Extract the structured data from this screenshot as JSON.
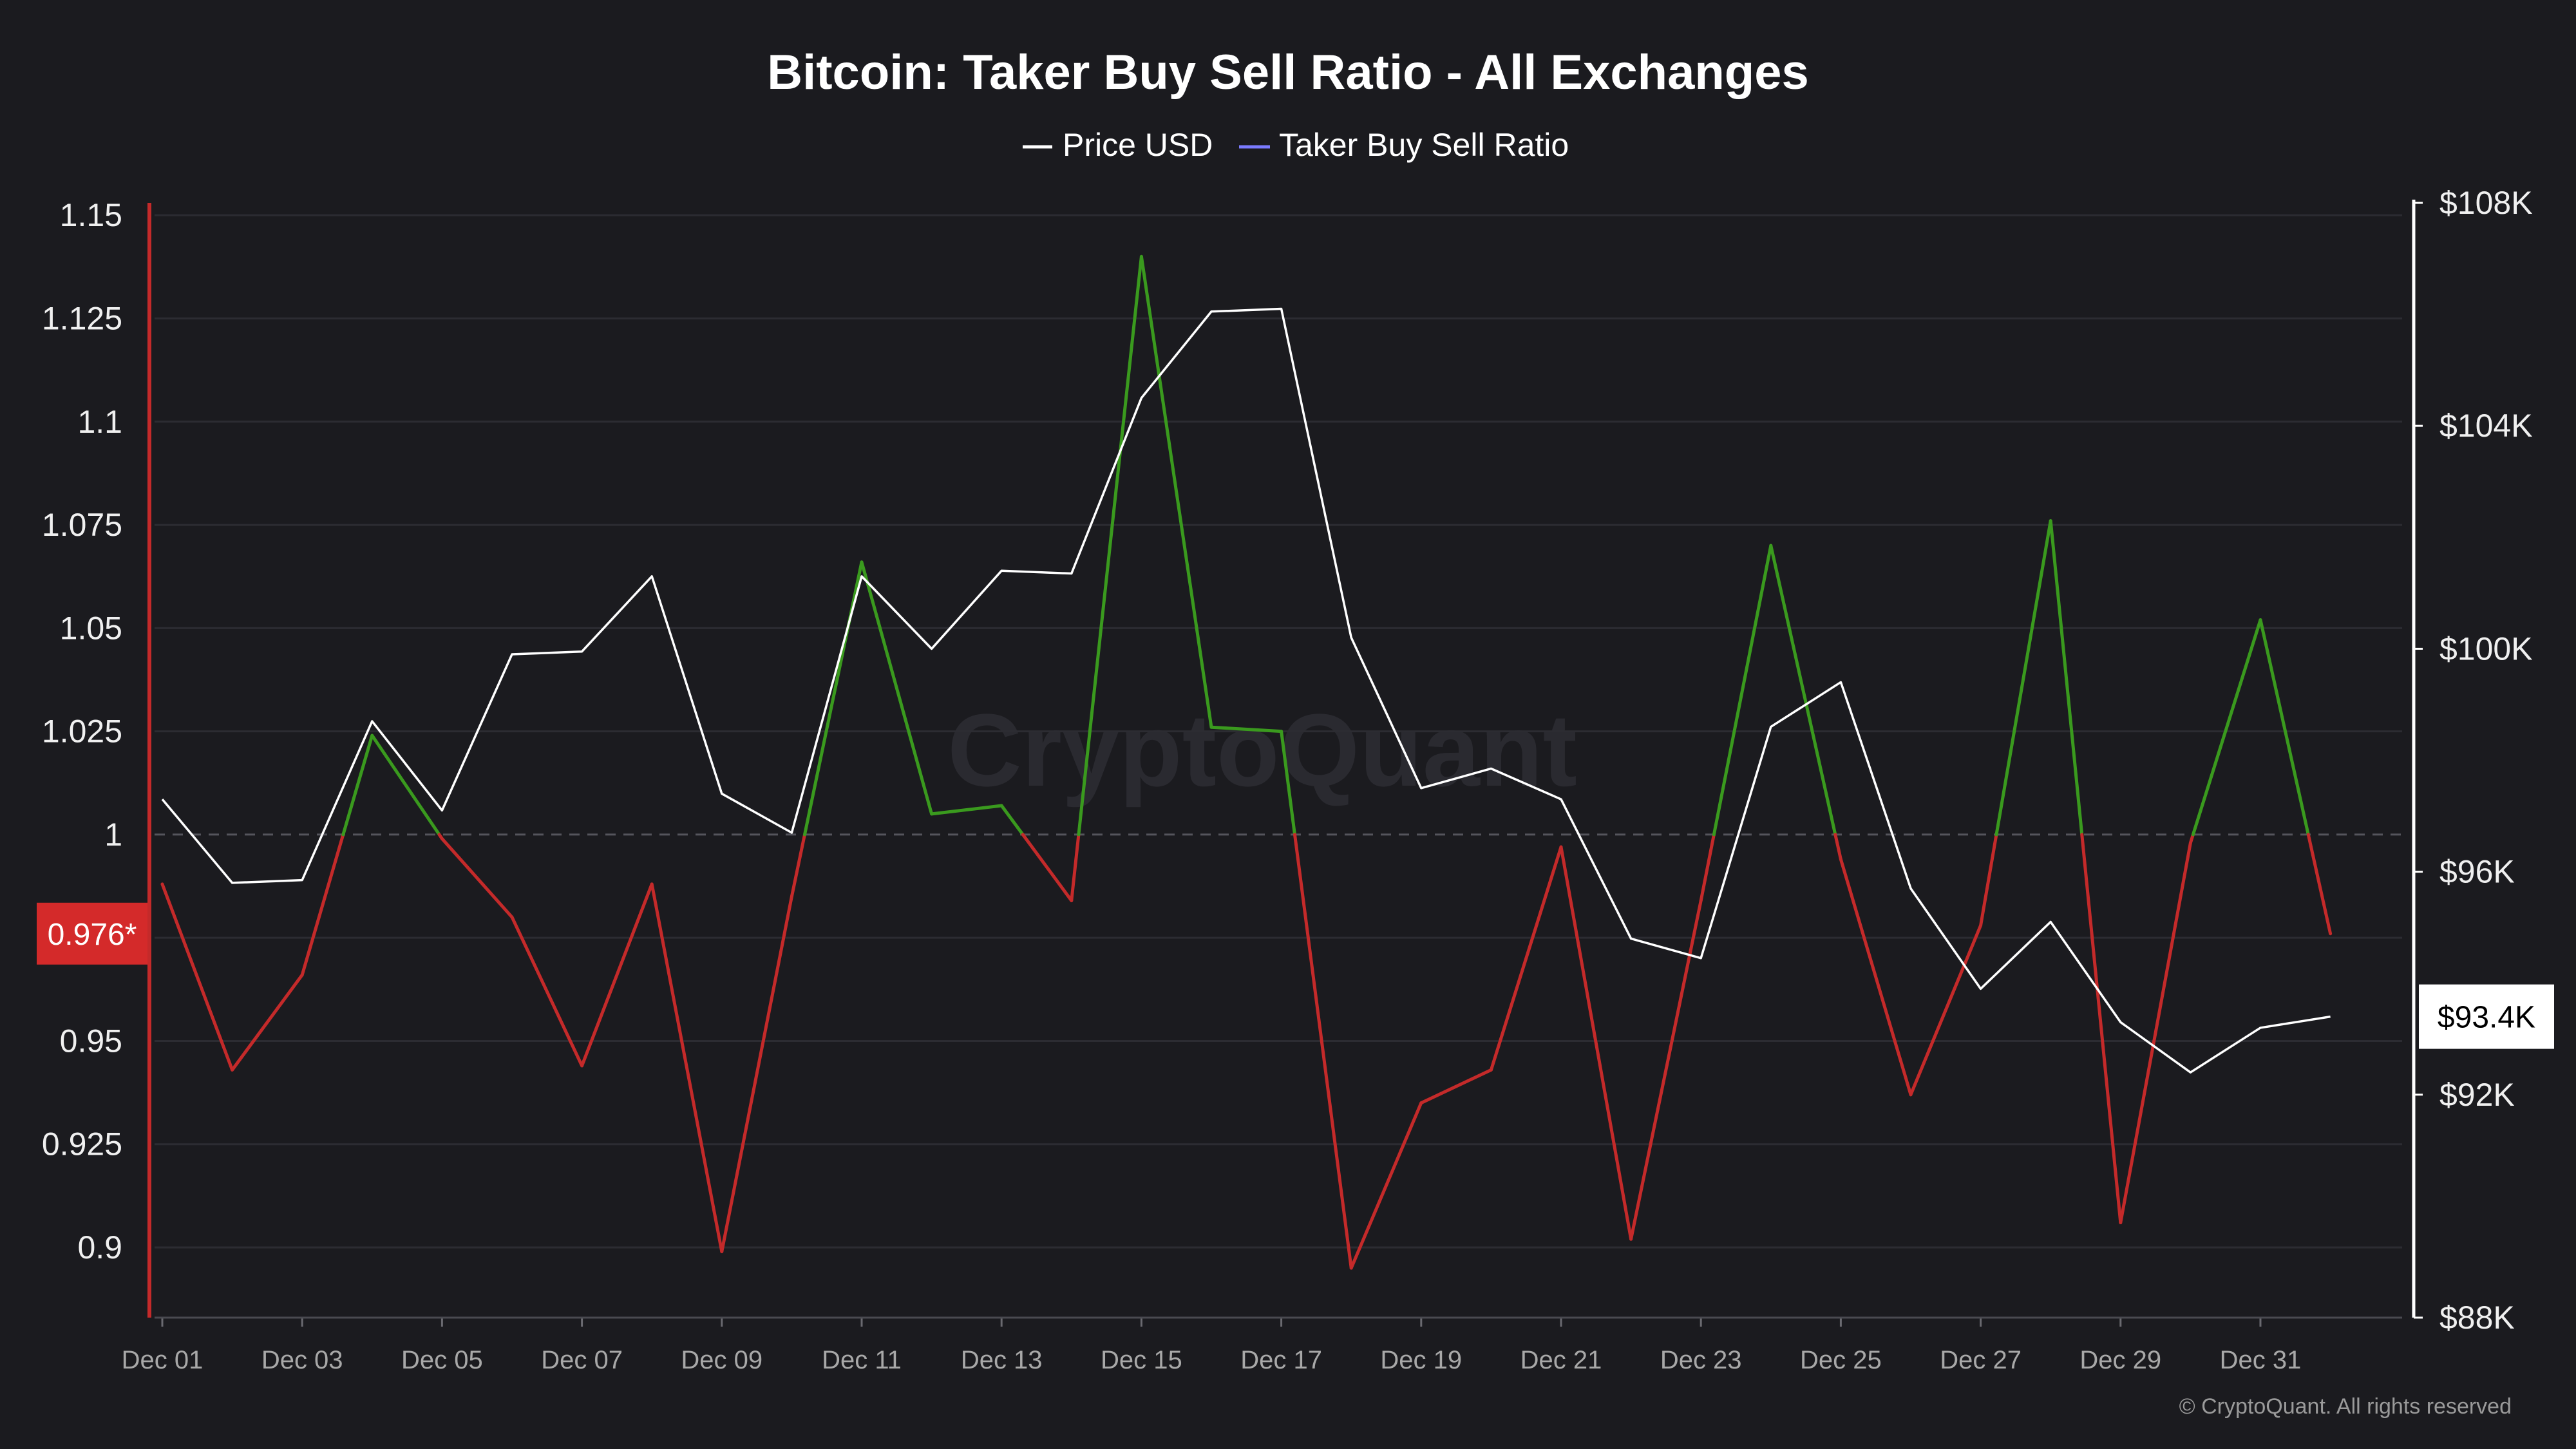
{
  "chart_data": {
    "type": "line",
    "title": "Bitcoin: Taker Buy Sell Ratio - All Exchanges",
    "legend": [
      {
        "name": "Price USD",
        "color": "#ffffff"
      },
      {
        "name": "Taker Buy Sell Ratio",
        "color": "#7b7bff"
      }
    ],
    "x": [
      "Dec 01",
      "Dec 02",
      "Dec 03",
      "Dec 04",
      "Dec 05",
      "Dec 06",
      "Dec 07",
      "Dec 08",
      "Dec 09",
      "Dec 10",
      "Dec 11",
      "Dec 12",
      "Dec 13",
      "Dec 14",
      "Dec 15",
      "Dec 16",
      "Dec 17",
      "Dec 18",
      "Dec 19",
      "Dec 20",
      "Dec 21",
      "Dec 22",
      "Dec 23",
      "Dec 24",
      "Dec 25",
      "Dec 26",
      "Dec 27",
      "Dec 28",
      "Dec 29",
      "Dec 30",
      "Dec 31",
      "Jan 01"
    ],
    "x_tick_labels": [
      "Dec 01",
      "Dec 03",
      "Dec 05",
      "Dec 07",
      "Dec 09",
      "Dec 11",
      "Dec 13",
      "Dec 15",
      "Dec 17",
      "Dec 19",
      "Dec 21",
      "Dec 23",
      "Dec 25",
      "Dec 27",
      "Dec 29",
      "Dec 31"
    ],
    "series": [
      {
        "name": "Taker Buy Sell Ratio",
        "axis": "left",
        "values": [
          0.988,
          0.943,
          0.966,
          1.024,
          0.999,
          0.98,
          0.944,
          0.988,
          0.899,
          0.985,
          1.066,
          1.005,
          1.007,
          0.984,
          1.14,
          1.026,
          1.025,
          0.895,
          0.935,
          0.943,
          0.997,
          0.902,
          0.984,
          1.07,
          0.994,
          0.937,
          0.978,
          1.076,
          0.906,
          0.998,
          1.052,
          0.976
        ],
        "color_above": "#3a9a1e",
        "color_below": "#c42a2a"
      },
      {
        "name": "Price USD",
        "axis": "right",
        "color": "#ffffff",
        "values": [
          97300,
          95800,
          95850,
          98700,
          97100,
          99900,
          99950,
          101300,
          97400,
          96700,
          101300,
          100000,
          101400,
          101350,
          104500,
          106050,
          106100,
          100200,
          97500,
          97850,
          97300,
          94800,
          94450,
          98600,
          99400,
          95700,
          93900,
          95100,
          93300,
          92400,
          93200,
          93400
        ]
      }
    ],
    "y_left": {
      "ticks": [
        "1.15",
        "1.125",
        "1.1",
        "1.075",
        "1.05",
        "1.025",
        "1",
        "0.975",
        "0.95",
        "0.925",
        "0.9"
      ],
      "ylim": [
        0.883,
        1.153
      ],
      "reference": 1
    },
    "y_right": {
      "ticks": [
        "$108K",
        "$104K",
        "$100K",
        "$96K",
        "$92K",
        "$88K"
      ],
      "ylim": [
        88000,
        108000
      ]
    },
    "current_ratio_label": "0.976*",
    "current_price_label": "$93.4K",
    "watermark": "CryptoQuant",
    "copyright": "© CryptoQuant. All rights reserved"
  },
  "colors": {
    "background": "#1b1b1f",
    "ratio_up": "#3a9a1e",
    "ratio_down": "#c42a2a",
    "price": "#ffffff",
    "badge_ratio": "#d42a2a"
  }
}
